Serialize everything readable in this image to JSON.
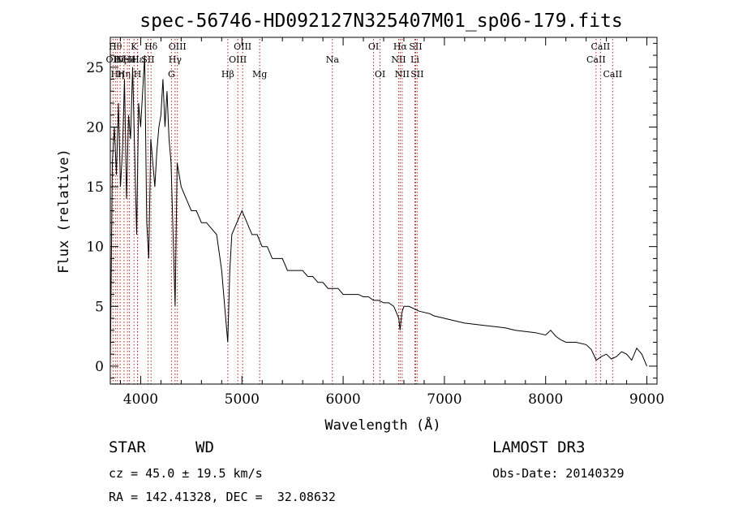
{
  "title": "spec-56746-HD092127N325407M01_sp06-179.fits",
  "info": {
    "class": "STAR",
    "subclass": "WD",
    "cz": "cz = 45.0 ± 19.5 km/s",
    "radec": "RA = 142.41328, DEC =  32.08632",
    "survey": "LAMOST DR3",
    "obs_date": "Obs-Date: 20140329"
  },
  "colors": {
    "spectrum": "#000000",
    "line_markers": "#b22222",
    "axes": "#000000"
  },
  "chart_data": {
    "type": "line",
    "xlabel": "Wavelength (Å)",
    "ylabel": "Flux (relative)",
    "xlim": [
      3700,
      9100
    ],
    "ylim": [
      -1.5,
      27.5
    ],
    "xticks": [
      4000,
      5000,
      6000,
      7000,
      8000,
      9000
    ],
    "yticks": [
      0,
      5,
      10,
      15,
      20,
      25
    ],
    "grid": false,
    "series": [
      {
        "x": [
          3700,
          3720,
          3740,
          3760,
          3780,
          3800,
          3820,
          3840,
          3860,
          3880,
          3900,
          3920,
          3940,
          3960,
          3980,
          4000,
          4020,
          4040,
          4060,
          4080,
          4100,
          4120,
          4140,
          4160,
          4180,
          4200,
          4220,
          4240,
          4260,
          4280,
          4300,
          4320,
          4340,
          4360,
          4380,
          4400,
          4450,
          4500,
          4550,
          4600,
          4650,
          4700,
          4750,
          4800,
          4830,
          4860,
          4880,
          4900,
          4950,
          5000,
          5050,
          5100,
          5150,
          5200,
          5250,
          5300,
          5350,
          5400,
          5450,
          5500,
          5550,
          5600,
          5650,
          5700,
          5750,
          5800,
          5850,
          5900,
          5950,
          6000,
          6050,
          6100,
          6150,
          6200,
          6250,
          6300,
          6350,
          6400,
          6450,
          6500,
          6550,
          6562,
          6580,
          6600,
          6650,
          6700,
          6750,
          6800,
          6850,
          6900,
          6950,
          7000,
          7100,
          7200,
          7300,
          7400,
          7500,
          7600,
          7700,
          7800,
          7900,
          8000,
          8050,
          8100,
          8150,
          8200,
          8300,
          8400,
          8450,
          8500,
          8550,
          8600,
          8650,
          8700,
          8750,
          8800,
          8850,
          8900,
          8950,
          9000
        ],
        "y": [
          0,
          17,
          20,
          16,
          22,
          15,
          18,
          24,
          14,
          21,
          19,
          25,
          18,
          11,
          22,
          20,
          23,
          26,
          12,
          9,
          19,
          17,
          15,
          18,
          20,
          21,
          24,
          20,
          23,
          19,
          17,
          11,
          5,
          17,
          16,
          15,
          14,
          13,
          13,
          12,
          12,
          11.5,
          11,
          8,
          5,
          2,
          8,
          11,
          12,
          13,
          12,
          11,
          11,
          10,
          10,
          9,
          9,
          9,
          8,
          8,
          8,
          8,
          7.5,
          7.5,
          7,
          7,
          6.5,
          6.5,
          6.5,
          6,
          6,
          6,
          6,
          5.8,
          5.8,
          5.5,
          5.5,
          5.3,
          5.3,
          5,
          4,
          3,
          4.5,
          5,
          5,
          4.8,
          4.6,
          4.5,
          4.4,
          4.2,
          4.1,
          4,
          3.8,
          3.6,
          3.5,
          3.4,
          3.3,
          3.2,
          3,
          2.9,
          2.8,
          2.6,
          3,
          2.5,
          2.2,
          2,
          2,
          1.8,
          1.4,
          0.5,
          0.8,
          1,
          0.6,
          0.8,
          1.2,
          1,
          0.5,
          1.5,
          1,
          0
        ]
      }
    ],
    "line_markers": [
      {
        "x": 3727,
        "label": "OII",
        "row": 2
      },
      {
        "x": 3750,
        "label": "Hθ",
        "row": 1
      },
      {
        "x": 3770,
        "label": "Hη",
        "row": 3
      },
      {
        "x": 3797,
        "label": "Hζ",
        "row": 2
      },
      {
        "x": 3835,
        "label": "Hη",
        "row": 3
      },
      {
        "x": 3869,
        "label": "NeIII",
        "row": 2
      },
      {
        "x": 3889,
        "label": "He",
        "row": 2
      },
      {
        "x": 3934,
        "label": "K",
        "row": 1
      },
      {
        "x": 3969,
        "label": "H",
        "row": 3
      },
      {
        "x": 3970,
        "label": "Hε",
        "row": 2
      },
      {
        "x": 4102,
        "label": "Hδ",
        "row": 1
      },
      {
        "x": 4072,
        "label": "SII",
        "row": 2
      },
      {
        "x": 4304,
        "label": "G",
        "row": 3
      },
      {
        "x": 4340,
        "label": "Hγ",
        "row": 2
      },
      {
        "x": 4363,
        "label": "OIII",
        "row": 1
      },
      {
        "x": 4861,
        "label": "Hβ",
        "row": 3
      },
      {
        "x": 4959,
        "label": "OIII",
        "row": 2
      },
      {
        "x": 5007,
        "label": "OIII",
        "row": 1
      },
      {
        "x": 5175,
        "label": "Mg",
        "row": 3
      },
      {
        "x": 5894,
        "label": "Na",
        "row": 2
      },
      {
        "x": 6300,
        "label": "OI",
        "row": 1
      },
      {
        "x": 6364,
        "label": "OI",
        "row": 3
      },
      {
        "x": 6548,
        "label": "NII",
        "row": 2
      },
      {
        "x": 6563,
        "label": "Hα",
        "row": 1
      },
      {
        "x": 6583,
        "label": "NII",
        "row": 3
      },
      {
        "x": 6708,
        "label": "Li",
        "row": 2
      },
      {
        "x": 6716,
        "label": "SII",
        "row": 1
      },
      {
        "x": 6731,
        "label": "SII",
        "row": 3
      },
      {
        "x": 8498,
        "label": "CaII",
        "row": 2
      },
      {
        "x": 8542,
        "label": "CaII",
        "row": 1
      },
      {
        "x": 8662,
        "label": "CaII",
        "row": 3
      }
    ]
  }
}
